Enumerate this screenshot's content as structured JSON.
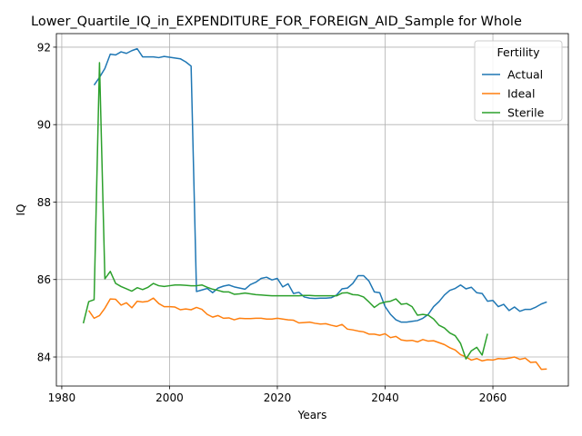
{
  "chart_data": {
    "type": "line",
    "title": "Lower_Quartile_IQ_in_EXPENDITURE_FOR_FOREIGN_AID_Sample for Whole",
    "xlabel": "Years",
    "ylabel": "IQ",
    "xlim": [
      1979,
      2074
    ],
    "ylim": [
      83.25,
      92.35
    ],
    "xticks": [
      1980,
      2000,
      2020,
      2040,
      2060
    ],
    "yticks": [
      84,
      86,
      88,
      90,
      92
    ],
    "grid": true,
    "legend": {
      "title": "Fertility",
      "placement": "top-right"
    },
    "series": [
      {
        "name": "Actual",
        "color": "#1f77b4",
        "x": [
          1986,
          1987,
          1988,
          1989,
          1990,
          1991,
          1992,
          1993,
          1994,
          1995,
          1996,
          1997,
          1998,
          1999,
          2000,
          2001,
          2002,
          2003,
          2004,
          2005,
          2006,
          2007,
          2008,
          2009,
          2010,
          2011,
          2012,
          2013,
          2014,
          2015,
          2016,
          2017,
          2018,
          2019,
          2020,
          2021,
          2022,
          2023,
          2024,
          2025,
          2026,
          2027,
          2028,
          2029,
          2030,
          2031,
          2032,
          2033,
          2034,
          2035,
          2036,
          2037,
          2038,
          2039,
          2040,
          2041,
          2042,
          2043,
          2044,
          2045,
          2046,
          2047,
          2048,
          2049,
          2050,
          2051,
          2052,
          2053,
          2054,
          2055,
          2056,
          2057,
          2058,
          2059,
          2060,
          2061,
          2062,
          2063,
          2064,
          2065,
          2066,
          2067,
          2068,
          2069,
          2070
        ],
        "values": [
          91.02,
          91.22,
          91.45,
          91.82,
          91.8,
          91.88,
          91.84,
          91.91,
          91.96,
          91.75,
          91.75,
          91.75,
          91.73,
          91.76,
          91.74,
          91.72,
          91.7,
          91.62,
          91.51,
          85.69,
          85.73,
          85.77,
          85.66,
          85.78,
          85.83,
          85.86,
          85.81,
          85.78,
          85.75,
          85.87,
          85.93,
          86.03,
          86.06,
          85.99,
          86.03,
          85.81,
          85.89,
          85.64,
          85.67,
          85.55,
          85.52,
          85.51,
          85.52,
          85.52,
          85.53,
          85.6,
          85.76,
          85.78,
          85.9,
          86.1,
          86.1,
          85.96,
          85.68,
          85.66,
          85.3,
          85.1,
          84.96,
          84.9,
          84.9,
          84.92,
          84.94,
          85.0,
          85.1,
          85.3,
          85.43,
          85.6,
          85.72,
          85.77,
          85.86,
          85.76,
          85.8,
          85.66,
          85.64,
          85.44,
          85.46,
          85.3,
          85.36,
          85.2,
          85.29,
          85.18,
          85.23,
          85.23,
          85.29,
          85.37,
          85.42
        ]
      },
      {
        "name": "Ideal",
        "color": "#ff7f0e",
        "x": [
          1985,
          1986,
          1987,
          1988,
          1989,
          1990,
          1991,
          1992,
          1993,
          1994,
          1995,
          1996,
          1997,
          1998,
          1999,
          2000,
          2001,
          2002,
          2003,
          2004,
          2005,
          2006,
          2007,
          2008,
          2009,
          2010,
          2011,
          2012,
          2013,
          2014,
          2015,
          2016,
          2017,
          2018,
          2019,
          2020,
          2021,
          2022,
          2023,
          2024,
          2025,
          2026,
          2027,
          2028,
          2029,
          2030,
          2031,
          2032,
          2033,
          2034,
          2035,
          2036,
          2037,
          2038,
          2039,
          2040,
          2041,
          2042,
          2043,
          2044,
          2045,
          2046,
          2047,
          2048,
          2049,
          2050,
          2051,
          2052,
          2053,
          2054,
          2055,
          2056,
          2057,
          2058,
          2059,
          2060,
          2061,
          2062,
          2063,
          2064,
          2065,
          2066,
          2067,
          2068,
          2069,
          2070
        ],
        "values": [
          85.2,
          85.0,
          85.07,
          85.26,
          85.5,
          85.49,
          85.34,
          85.4,
          85.27,
          85.44,
          85.42,
          85.44,
          85.52,
          85.38,
          85.3,
          85.3,
          85.29,
          85.22,
          85.24,
          85.22,
          85.28,
          85.23,
          85.1,
          85.03,
          85.07,
          85.0,
          85.01,
          84.96,
          85.0,
          84.99,
          84.99,
          85.0,
          85.0,
          84.98,
          84.98,
          85.0,
          84.98,
          84.96,
          84.95,
          84.88,
          84.89,
          84.9,
          84.87,
          84.85,
          84.86,
          84.82,
          84.79,
          84.84,
          84.72,
          84.7,
          84.67,
          84.65,
          84.59,
          84.59,
          84.56,
          84.6,
          84.5,
          84.53,
          84.44,
          84.42,
          84.43,
          84.39,
          84.45,
          84.41,
          84.42,
          84.37,
          84.32,
          84.24,
          84.18,
          84.06,
          84.0,
          83.92,
          83.96,
          83.9,
          83.93,
          83.92,
          83.96,
          83.95,
          83.97,
          84.0,
          83.94,
          83.97,
          83.86,
          83.87,
          83.68,
          83.69
        ]
      },
      {
        "name": "Sterile",
        "color": "#2ca02c",
        "x": [
          1984,
          1985,
          1986,
          1987,
          1988,
          1989,
          1990,
          1991,
          1992,
          1993,
          1994,
          1995,
          1996,
          1997,
          1998,
          1999,
          2000,
          2001,
          2002,
          2003,
          2004,
          2005,
          2006,
          2007,
          2008,
          2009,
          2010,
          2011,
          2012,
          2013,
          2014,
          2015,
          2016,
          2017,
          2018,
          2019,
          2020,
          2021,
          2022,
          2023,
          2024,
          2025,
          2026,
          2027,
          2028,
          2029,
          2030,
          2031,
          2032,
          2033,
          2034,
          2035,
          2036,
          2037,
          2038,
          2039,
          2040,
          2041,
          2042,
          2043,
          2044,
          2045,
          2046,
          2047,
          2048,
          2049,
          2050,
          2051,
          2052,
          2053,
          2054,
          2055,
          2056,
          2057,
          2058,
          2059
        ],
        "values": [
          84.87,
          85.43,
          85.48,
          91.6,
          86.02,
          86.21,
          85.9,
          85.82,
          85.76,
          85.7,
          85.79,
          85.74,
          85.8,
          85.9,
          85.84,
          85.82,
          85.84,
          85.86,
          85.86,
          85.85,
          85.84,
          85.84,
          85.86,
          85.8,
          85.75,
          85.72,
          85.68,
          85.68,
          85.62,
          85.63,
          85.65,
          85.63,
          85.61,
          85.6,
          85.59,
          85.58,
          85.58,
          85.58,
          85.58,
          85.58,
          85.58,
          85.59,
          85.59,
          85.58,
          85.58,
          85.58,
          85.58,
          85.58,
          85.65,
          85.66,
          85.61,
          85.6,
          85.55,
          85.42,
          85.28,
          85.38,
          85.42,
          85.44,
          85.5,
          85.36,
          85.38,
          85.3,
          85.08,
          85.1,
          85.08,
          84.98,
          84.82,
          84.75,
          84.62,
          84.55,
          84.35,
          83.95,
          84.16,
          84.25,
          84.05,
          84.6
        ]
      }
    ]
  }
}
